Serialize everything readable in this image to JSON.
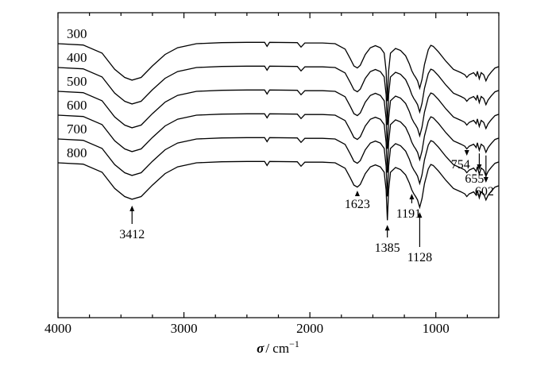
{
  "chart_data": {
    "type": "line",
    "title": "",
    "xlabel_symbol": "σ",
    "xlabel_unit": "/ cm",
    "xlabel_exp": "−1",
    "ylabel": "",
    "xlim": [
      4000,
      500
    ],
    "xticks": [
      4000,
      3000,
      2000,
      1000
    ],
    "grid": false,
    "legend": "none",
    "series": [
      {
        "name": "300",
        "offset": 5
      },
      {
        "name": "400",
        "offset": 4
      },
      {
        "name": "500",
        "offset": 3
      },
      {
        "name": "600",
        "offset": 2
      },
      {
        "name": "700",
        "offset": 1
      },
      {
        "name": "800",
        "offset": 0
      }
    ],
    "profile": {
      "wavenumber": [
        4000,
        3800,
        3650,
        3550,
        3470,
        3412,
        3340,
        3250,
        3150,
        3050,
        2900,
        2700,
        2500,
        2360,
        2340,
        2320,
        2100,
        2070,
        2040,
        1900,
        1800,
        1720,
        1680,
        1650,
        1623,
        1600,
        1560,
        1520,
        1480,
        1440,
        1410,
        1395,
        1385,
        1375,
        1360,
        1320,
        1280,
        1240,
        1210,
        1191,
        1175,
        1160,
        1145,
        1128,
        1110,
        1090,
        1060,
        1040,
        1020,
        980,
        920,
        860,
        800,
        770,
        754,
        735,
        700,
        680,
        670,
        655,
        640,
        620,
        602,
        585,
        560,
        530,
        500
      ],
      "transmittance": [
        0.0,
        -0.2,
        -1.4,
        -3.8,
        -5.0,
        -5.4,
        -5.0,
        -3.3,
        -1.6,
        -0.6,
        0.0,
        0.15,
        0.2,
        0.2,
        -0.4,
        0.2,
        0.15,
        -0.5,
        0.1,
        0.1,
        0.0,
        -0.8,
        -2.2,
        -3.3,
        -3.6,
        -3.2,
        -1.6,
        -0.6,
        -0.3,
        -0.6,
        -1.4,
        -4.0,
        -8.5,
        -4.0,
        -1.4,
        -0.7,
        -1.0,
        -1.8,
        -3.0,
        -4.0,
        -4.6,
        -5.0,
        -5.5,
        -6.6,
        -5.3,
        -3.1,
        -0.9,
        -0.25,
        -0.4,
        -1.2,
        -2.6,
        -3.8,
        -4.3,
        -4.6,
        -5.0,
        -4.6,
        -4.3,
        -4.8,
        -4.1,
        -5.2,
        -4.3,
        -4.6,
        -5.5,
        -4.8,
        -4.2,
        -3.6,
        -3.4
      ]
    },
    "curve_labels": [
      "300",
      "400",
      "500",
      "600",
      "700",
      "800"
    ],
    "peaks": [
      {
        "wavenumber": 3412,
        "label": "3412"
      },
      {
        "wavenumber": 1623,
        "label": "1623"
      },
      {
        "wavenumber": 1385,
        "label": "1385"
      },
      {
        "wavenumber": 1191,
        "label": "1191"
      },
      {
        "wavenumber": 1128,
        "label": "1128"
      },
      {
        "wavenumber": 754,
        "label": "754"
      },
      {
        "wavenumber": 655,
        "label": "655"
      },
      {
        "wavenumber": 602,
        "label": "602"
      }
    ]
  }
}
